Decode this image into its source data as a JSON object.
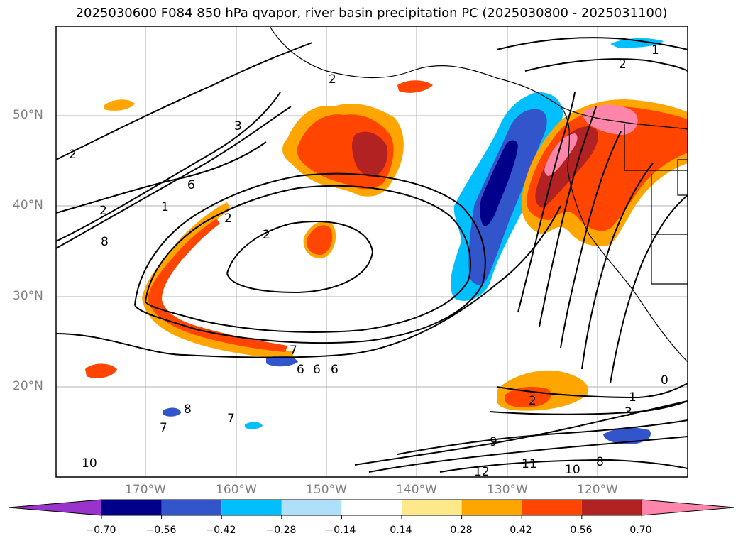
{
  "title": "2025030600 F084 850 hPa qvapor, river basin precipitation PC (2025030800 - 2025031100)",
  "map": {
    "lat_labels": [
      "50°N",
      "40°N",
      "30°N",
      "20°N"
    ],
    "lon_labels": [
      "170°W",
      "160°W",
      "150°W",
      "140°W",
      "130°W",
      "120°W"
    ],
    "contour_labels": [
      "1",
      "2",
      "2",
      "3",
      "2",
      "6",
      "2",
      "1",
      "8",
      "2",
      "2",
      "7",
      "6",
      "6",
      "6",
      "0",
      "1",
      "2",
      "3",
      "9",
      "11",
      "10",
      "8",
      "12",
      "10",
      "7",
      "8",
      "7"
    ],
    "colors": {
      "land_outline": "#000000",
      "grid": "#b0b0b0",
      "contour": "#000000"
    }
  },
  "colorbar": {
    "labels": [
      "−0.70",
      "−0.56",
      "−0.42",
      "−0.28",
      "−0.14",
      "0.14",
      "0.28",
      "0.42",
      "0.56",
      "0.70"
    ],
    "colors": [
      "#9933cc",
      "#00008b",
      "#3355cc",
      "#00bfff",
      "#aee0fa",
      "#ffffff",
      "#fde98a",
      "#ffa500",
      "#ff4500",
      "#b22222",
      "#ff85aa"
    ]
  }
}
